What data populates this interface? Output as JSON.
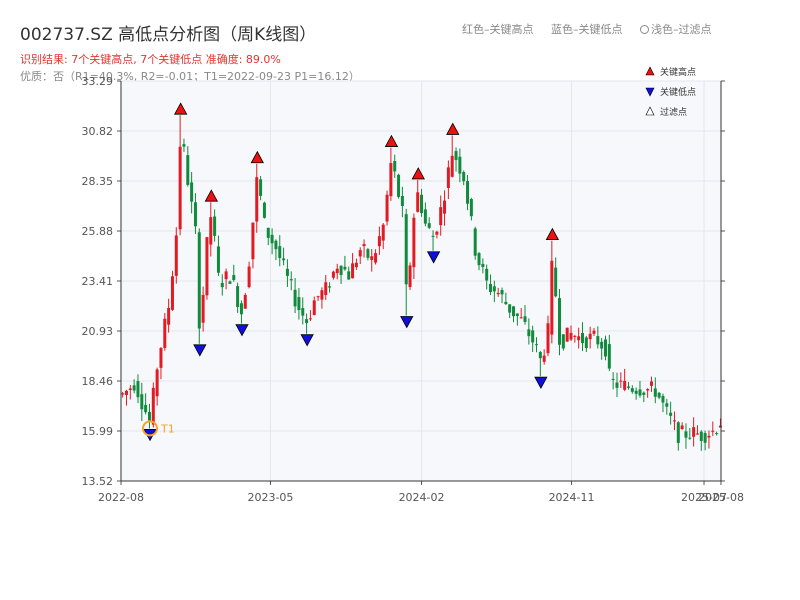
{
  "header": {
    "title": "002737.SZ 高低点分析图（周K线图）",
    "result_line": "识别结果: 7个关键高点, 7个关键低点   准确度: 89.0%",
    "quality_line": "优质：否（R1=40.3%, R2=-0.01；T1=2022-09-23 P1=16.12）",
    "legend_red": "红色–关键高点",
    "legend_blue": "蓝色–关键低点",
    "legend_light": "浅色–过滤点"
  },
  "colors": {
    "up": "#e01b24",
    "down": "#108a3c",
    "high_marker": "#ee1111",
    "low_marker": "#1010dd",
    "t1_marker": "#f5a623",
    "plot_bg": "#f7f8fb",
    "grid": "#e2e6ee"
  },
  "chart_data": {
    "type": "candlestick",
    "y_ticks": [
      "33.29",
      "30.82",
      "28.35",
      "25.88",
      "23.41",
      "20.93",
      "18.46",
      "15.99",
      "13.52"
    ],
    "ylim": [
      13.52,
      33.29
    ],
    "x_ticks": [
      {
        "label": "2022-08",
        "date": "2022-08-01"
      },
      {
        "label": "2023-05",
        "date": "2023-05-01"
      },
      {
        "label": "2024-02",
        "date": "2024-02-01"
      },
      {
        "label": "2024-11",
        "date": "2024-11-01"
      },
      {
        "label": "2025-07",
        "date": "2025-07-01"
      },
      {
        "label": "2025-08",
        "date": "2025-08-01"
      }
    ],
    "x_range": [
      "2022-08-01",
      "2025-08-01"
    ],
    "legend": {
      "position": "top-right",
      "items": [
        {
          "label": "关键高点",
          "kind": "high"
        },
        {
          "label": "关键低点",
          "kind": "low"
        },
        {
          "label": "过滤点",
          "kind": "filtered"
        }
      ]
    },
    "key_highs": [
      {
        "date": "2022-11-18",
        "value": 31.6
      },
      {
        "date": "2023-01-13",
        "value": 27.3
      },
      {
        "date": "2023-04-07",
        "value": 29.2
      },
      {
        "date": "2023-12-08",
        "value": 30.0
      },
      {
        "date": "2024-01-26",
        "value": 28.4
      },
      {
        "date": "2024-03-29",
        "value": 30.6
      },
      {
        "date": "2024-09-27",
        "value": 25.4
      }
    ],
    "key_lows": [
      {
        "date": "2022-09-23",
        "value": 16.12
      },
      {
        "date": "2022-12-23",
        "value": 20.3
      },
      {
        "date": "2023-03-10",
        "value": 21.3
      },
      {
        "date": "2023-07-07",
        "value": 20.8
      },
      {
        "date": "2024-01-05",
        "value": 21.7
      },
      {
        "date": "2024-02-23",
        "value": 24.9
      },
      {
        "date": "2024-09-06",
        "value": 18.7
      }
    ],
    "t1": {
      "label": "T1",
      "date": "2022-09-23",
      "value": 16.12
    },
    "candle_anchors": [
      [
        "2022-08-05",
        17.8
      ],
      [
        "2022-08-26",
        18.4
      ],
      [
        "2022-09-23",
        16.4
      ],
      [
        "2022-10-07",
        19.4
      ],
      [
        "2022-10-28",
        22.3
      ],
      [
        "2022-11-11",
        26.0
      ],
      [
        "2022-11-18",
        30.9
      ],
      [
        "2022-12-02",
        28.2
      ],
      [
        "2022-12-16",
        25.6
      ],
      [
        "2022-12-23",
        20.8
      ],
      [
        "2023-01-06",
        25.5
      ],
      [
        "2023-01-13",
        26.8
      ],
      [
        "2023-01-27",
        23.3
      ],
      [
        "2023-02-17",
        23.7
      ],
      [
        "2023-03-10",
        21.8
      ],
      [
        "2023-03-24",
        24.7
      ],
      [
        "2023-04-07",
        28.6
      ],
      [
        "2023-04-21",
        26.0
      ],
      [
        "2023-05-12",
        25.0
      ],
      [
        "2023-06-02",
        23.4
      ],
      [
        "2023-06-23",
        22.0
      ],
      [
        "2023-07-07",
        21.4
      ],
      [
        "2023-07-21",
        22.5
      ],
      [
        "2023-08-11",
        23.0
      ],
      [
        "2023-09-01",
        24.3
      ],
      [
        "2023-09-22",
        23.7
      ],
      [
        "2023-10-13",
        25.0
      ],
      [
        "2023-11-03",
        24.4
      ],
      [
        "2023-11-24",
        26.2
      ],
      [
        "2023-12-08",
        29.4
      ],
      [
        "2023-12-29",
        26.6
      ],
      [
        "2024-01-05",
        22.3
      ],
      [
        "2024-01-19",
        27.0
      ],
      [
        "2024-01-26",
        27.8
      ],
      [
        "2024-02-09",
        26.1
      ],
      [
        "2024-02-23",
        25.6
      ],
      [
        "2024-03-08",
        27.0
      ],
      [
        "2024-03-29",
        29.9
      ],
      [
        "2024-04-19",
        28.5
      ],
      [
        "2024-05-10",
        24.8
      ],
      [
        "2024-05-31",
        23.2
      ],
      [
        "2024-06-21",
        22.8
      ],
      [
        "2024-07-12",
        22.0
      ],
      [
        "2024-08-02",
        21.4
      ],
      [
        "2024-08-23",
        20.4
      ],
      [
        "2024-09-06",
        19.4
      ],
      [
        "2024-09-20",
        21.0
      ],
      [
        "2024-09-27",
        24.5
      ],
      [
        "2024-10-11",
        20.4
      ],
      [
        "2024-11-01",
        20.8
      ],
      [
        "2024-11-22",
        20.5
      ],
      [
        "2024-12-13",
        20.6
      ],
      [
        "2025-01-03",
        20.1
      ],
      [
        "2025-01-10",
        18.4
      ],
      [
        "2025-02-07",
        18.2
      ],
      [
        "2025-03-07",
        18.1
      ],
      [
        "2025-04-04",
        18.0
      ],
      [
        "2025-04-25",
        16.8
      ],
      [
        "2025-05-16",
        15.8
      ],
      [
        "2025-06-06",
        15.9
      ],
      [
        "2025-06-27",
        15.8
      ],
      [
        "2025-07-18",
        16.0
      ],
      [
        "2025-08-01",
        16.5
      ]
    ]
  }
}
